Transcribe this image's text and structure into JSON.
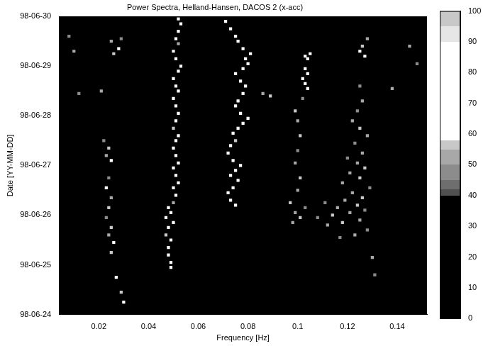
{
  "chart_data": {
    "type": "heatmap",
    "title": "Power Spectra, Helland-Hansen, DACOS 2 (x-acc)",
    "x_label": "Frequency [Hz]",
    "y_label": "Date [YY-MM-DD]",
    "xlim": [
      0.004,
      0.152
    ],
    "xticks": [
      0.02,
      0.04,
      0.06,
      0.08,
      0.1,
      0.12,
      0.14
    ],
    "ylim": [
      24,
      30
    ],
    "yticks": [
      {
        "value": 24,
        "label": "98-06-24"
      },
      {
        "value": 25,
        "label": "98-06-25"
      },
      {
        "value": 26,
        "label": "98-06-26"
      },
      {
        "value": 27,
        "label": "98-06-27"
      },
      {
        "value": 28,
        "label": "98-06-28"
      },
      {
        "value": 29,
        "label": "98-06-29"
      },
      {
        "value": 30,
        "label": "98-06-30"
      }
    ],
    "grid": false,
    "cells": [
      [
        0.049,
        24.95,
        80
      ],
      [
        0.049,
        25.05,
        70
      ],
      [
        0.048,
        25.2,
        75
      ],
      [
        0.048,
        25.35,
        60
      ],
      [
        0.049,
        25.5,
        80
      ],
      [
        0.047,
        25.6,
        55
      ],
      [
        0.048,
        25.75,
        75
      ],
      [
        0.05,
        25.85,
        80
      ],
      [
        0.047,
        25.95,
        70
      ],
      [
        0.049,
        26.05,
        85
      ],
      [
        0.048,
        26.15,
        75
      ],
      [
        0.05,
        26.25,
        50
      ],
      [
        0.051,
        26.4,
        75
      ],
      [
        0.05,
        26.55,
        80
      ],
      [
        0.052,
        26.65,
        70
      ],
      [
        0.051,
        26.8,
        75
      ],
      [
        0.05,
        26.95,
        85
      ],
      [
        0.052,
        27.05,
        60
      ],
      [
        0.051,
        27.2,
        80
      ],
      [
        0.05,
        27.35,
        75
      ],
      [
        0.051,
        27.5,
        70
      ],
      [
        0.052,
        27.6,
        80
      ],
      [
        0.05,
        27.75,
        55
      ],
      [
        0.051,
        27.9,
        75
      ],
      [
        0.052,
        28.05,
        80
      ],
      [
        0.051,
        28.2,
        70
      ],
      [
        0.05,
        28.35,
        75
      ],
      [
        0.052,
        28.5,
        85
      ],
      [
        0.051,
        28.6,
        60
      ],
      [
        0.05,
        28.75,
        75
      ],
      [
        0.052,
        28.9,
        80
      ],
      [
        0.053,
        29.0,
        70
      ],
      [
        0.051,
        29.15,
        75
      ],
      [
        0.05,
        29.3,
        80
      ],
      [
        0.052,
        29.45,
        50
      ],
      [
        0.051,
        29.55,
        75
      ],
      [
        0.052,
        29.7,
        80
      ],
      [
        0.053,
        29.85,
        70
      ],
      [
        0.052,
        29.95,
        75
      ],
      [
        0.075,
        26.2,
        75
      ],
      [
        0.073,
        26.3,
        80
      ],
      [
        0.072,
        26.45,
        70
      ],
      [
        0.074,
        26.55,
        75
      ],
      [
        0.076,
        26.7,
        85
      ],
      [
        0.073,
        26.8,
        60
      ],
      [
        0.075,
        26.9,
        75
      ],
      [
        0.077,
        27.0,
        80
      ],
      [
        0.074,
        27.1,
        70
      ],
      [
        0.072,
        27.25,
        75
      ],
      [
        0.073,
        27.4,
        80
      ],
      [
        0.075,
        27.5,
        55
      ],
      [
        0.074,
        27.65,
        75
      ],
      [
        0.076,
        27.75,
        80
      ],
      [
        0.078,
        27.85,
        85
      ],
      [
        0.08,
        27.95,
        60
      ],
      [
        0.077,
        28.05,
        75
      ],
      [
        0.075,
        28.2,
        80
      ],
      [
        0.076,
        28.3,
        70
      ],
      [
        0.078,
        28.45,
        75
      ],
      [
        0.079,
        28.6,
        80
      ],
      [
        0.077,
        28.7,
        75
      ],
      [
        0.075,
        28.85,
        70
      ],
      [
        0.078,
        28.95,
        80
      ],
      [
        0.08,
        29.05,
        85
      ],
      [
        0.079,
        29.15,
        75
      ],
      [
        0.081,
        29.25,
        70
      ],
      [
        0.078,
        29.35,
        80
      ],
      [
        0.076,
        29.5,
        60
      ],
      [
        0.075,
        29.6,
        75
      ],
      [
        0.073,
        29.75,
        80
      ],
      [
        0.071,
        29.9,
        75
      ],
      [
        0.03,
        24.25,
        65
      ],
      [
        0.029,
        24.45,
        55
      ],
      [
        0.027,
        24.75,
        60
      ],
      [
        0.025,
        25.25,
        55
      ],
      [
        0.026,
        25.45,
        60
      ],
      [
        0.024,
        25.6,
        50
      ],
      [
        0.025,
        25.75,
        55
      ],
      [
        0.023,
        25.95,
        45
      ],
      [
        0.024,
        26.15,
        55
      ],
      [
        0.025,
        26.35,
        50
      ],
      [
        0.023,
        26.55,
        60
      ],
      [
        0.024,
        26.75,
        45
      ],
      [
        0.025,
        27.1,
        60
      ],
      [
        0.023,
        27.2,
        50
      ],
      [
        0.024,
        27.35,
        55
      ],
      [
        0.022,
        27.5,
        45
      ],
      [
        0.021,
        28.5,
        50
      ],
      [
        0.026,
        29.25,
        55
      ],
      [
        0.028,
        29.35,
        60
      ],
      [
        0.025,
        29.5,
        50
      ],
      [
        0.029,
        29.55,
        45
      ],
      [
        0.098,
        25.85,
        50
      ],
      [
        0.101,
        25.95,
        55
      ],
      [
        0.099,
        26.05,
        50
      ],
      [
        0.103,
        26.15,
        45
      ],
      [
        0.097,
        26.25,
        55
      ],
      [
        0.1,
        26.5,
        50
      ],
      [
        0.101,
        26.75,
        55
      ],
      [
        0.099,
        27.05,
        50
      ],
      [
        0.1,
        27.3,
        45
      ],
      [
        0.101,
        27.6,
        55
      ],
      [
        0.1,
        27.9,
        50
      ],
      [
        0.099,
        28.1,
        55
      ],
      [
        0.102,
        28.35,
        45
      ],
      [
        0.104,
        28.55,
        75
      ],
      [
        0.103,
        28.65,
        80
      ],
      [
        0.102,
        28.75,
        70
      ],
      [
        0.104,
        28.85,
        75
      ],
      [
        0.103,
        28.95,
        60
      ],
      [
        0.104,
        29.15,
        80
      ],
      [
        0.103,
        29.2,
        75
      ],
      [
        0.105,
        29.25,
        70
      ],
      [
        0.089,
        28.4,
        55
      ],
      [
        0.086,
        28.45,
        50
      ],
      [
        0.117,
        25.55,
        45
      ],
      [
        0.123,
        25.6,
        50
      ],
      [
        0.128,
        25.7,
        45
      ],
      [
        0.112,
        25.8,
        50
      ],
      [
        0.118,
        25.85,
        55
      ],
      [
        0.125,
        25.9,
        50
      ],
      [
        0.108,
        25.95,
        45
      ],
      [
        0.114,
        26.0,
        55
      ],
      [
        0.121,
        26.05,
        50
      ],
      [
        0.127,
        26.1,
        45
      ],
      [
        0.116,
        26.15,
        50
      ],
      [
        0.124,
        26.2,
        55
      ],
      [
        0.111,
        26.25,
        45
      ],
      [
        0.119,
        26.3,
        50
      ],
      [
        0.126,
        26.35,
        55
      ],
      [
        0.122,
        26.45,
        50
      ],
      [
        0.129,
        26.55,
        45
      ],
      [
        0.118,
        26.65,
        50
      ],
      [
        0.125,
        26.75,
        55
      ],
      [
        0.121,
        26.85,
        50
      ],
      [
        0.127,
        26.95,
        55
      ],
      [
        0.124,
        27.05,
        50
      ],
      [
        0.12,
        27.15,
        45
      ],
      [
        0.126,
        27.25,
        50
      ],
      [
        0.123,
        27.45,
        45
      ],
      [
        0.128,
        27.6,
        50
      ],
      [
        0.125,
        27.75,
        55
      ],
      [
        0.122,
        27.9,
        50
      ],
      [
        0.124,
        28.1,
        45
      ],
      [
        0.126,
        28.3,
        50
      ],
      [
        0.125,
        28.6,
        45
      ],
      [
        0.127,
        29.2,
        75
      ],
      [
        0.125,
        29.3,
        70
      ],
      [
        0.126,
        29.4,
        55
      ],
      [
        0.128,
        29.55,
        50
      ],
      [
        0.131,
        24.8,
        45
      ],
      [
        0.13,
        25.15,
        50
      ],
      [
        0.01,
        29.3,
        50
      ],
      [
        0.012,
        28.45,
        45
      ],
      [
        0.008,
        29.6,
        45
      ],
      [
        0.145,
        29.4,
        50
      ],
      [
        0.148,
        29.05,
        45
      ],
      [
        0.138,
        28.55,
        50
      ]
    ],
    "colorbar": {
      "range": [
        0,
        100
      ],
      "ticks": [
        0,
        10,
        20,
        30,
        40,
        50,
        60,
        70,
        80,
        90,
        100
      ]
    }
  }
}
